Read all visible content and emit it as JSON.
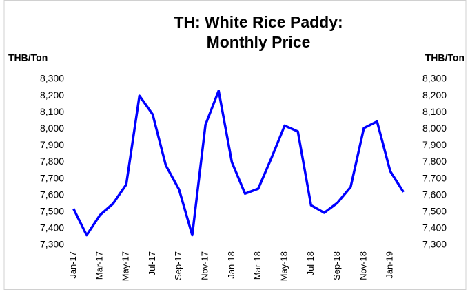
{
  "chart_data": {
    "type": "line",
    "title": [
      "TH: White Rice Paddy:",
      "Monthly Price"
    ],
    "ylabel": "THB/Ton",
    "y2label": "THB/Ton",
    "categories": [
      "Jan-17",
      null,
      "Mar-17",
      null,
      "May-17",
      null,
      "Jul-17",
      null,
      "Sep-17",
      null,
      "Nov-17",
      null,
      "Jan-18",
      null,
      "Mar-18",
      null,
      "May-18",
      null,
      "Jul-18",
      null,
      "Sep-18",
      null,
      "Nov-18",
      null,
      "Jan-19",
      null
    ],
    "series": [
      {
        "name": "White Rice Paddy",
        "color": "#0000ff",
        "values": [
          7520,
          7360,
          7480,
          7550,
          7665,
          8200,
          8088,
          7780,
          7635,
          7360,
          8025,
          8230,
          7800,
          7610,
          7640,
          7825,
          8020,
          7985,
          7540,
          7495,
          7555,
          7650,
          8005,
          8045,
          7745,
          7620
        ]
      }
    ],
    "ylim": [
      7300,
      8300
    ],
    "yticks": [
      {
        "value": 7300,
        "label": "7,300"
      },
      {
        "value": 7400,
        "label": "7,400"
      },
      {
        "value": 7500,
        "label": "7,500"
      },
      {
        "value": 7600,
        "label": "7,600"
      },
      {
        "value": 7700,
        "label": "7,700"
      },
      {
        "value": 7800,
        "label": "7,800"
      },
      {
        "value": 7900,
        "label": "7,900"
      },
      {
        "value": 8000,
        "label": "8,000"
      },
      {
        "value": 8100,
        "label": "8,100"
      },
      {
        "value": 8200,
        "label": "8,200"
      },
      {
        "value": 8300,
        "label": "8,300"
      }
    ],
    "y2lim": [
      7300,
      8300
    ],
    "y2ticks": [
      {
        "value": 7300,
        "label": "7,300"
      },
      {
        "value": 7400,
        "label": "7,400"
      },
      {
        "value": 7500,
        "label": "7,500"
      },
      {
        "value": 7600,
        "label": "7,600"
      },
      {
        "value": 7700,
        "label": "7,700"
      },
      {
        "value": 7800,
        "label": "7,800"
      },
      {
        "value": 7900,
        "label": "7,900"
      },
      {
        "value": 8000,
        "label": "8,000"
      },
      {
        "value": 8100,
        "label": "8,100"
      },
      {
        "value": 8200,
        "label": "8,200"
      },
      {
        "value": 8300,
        "label": "8,300"
      }
    ]
  }
}
